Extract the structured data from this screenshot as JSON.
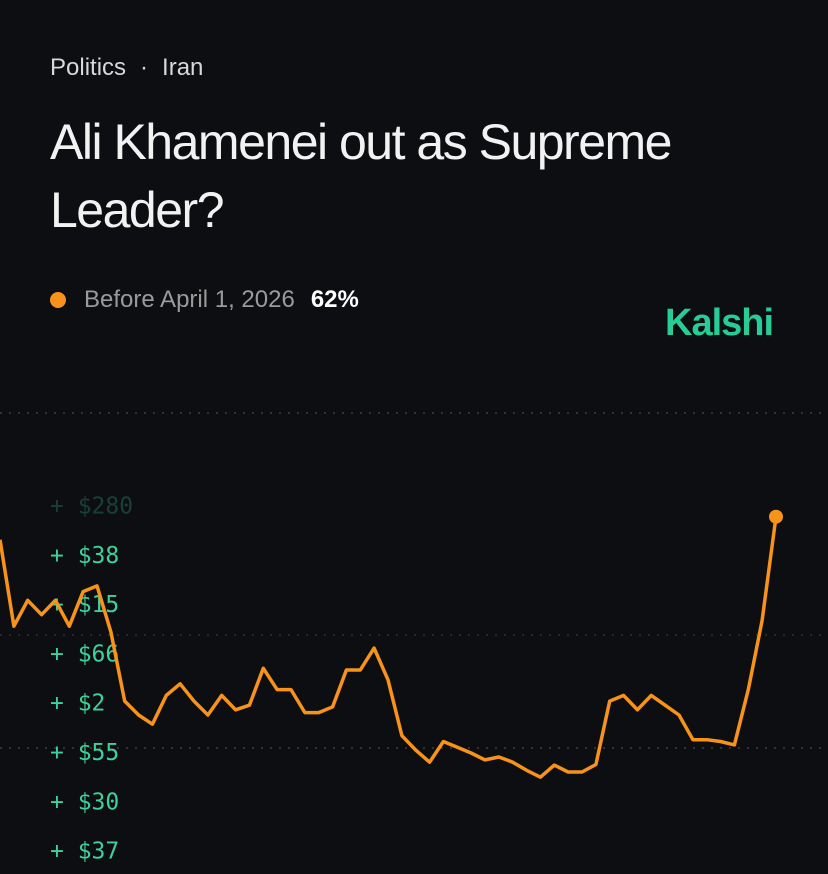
{
  "header": {
    "category": "Politics",
    "subcategory": "Iran",
    "title": "Ali Khamenei out as Supreme Leader?",
    "brand": "Kalshi"
  },
  "trades": [
    "+ $280",
    "+ $38",
    "+ $15",
    "+ $66",
    "+ $2",
    "+ $55",
    "+ $30",
    "+ $37"
  ],
  "chart_data": {
    "type": "line",
    "ylim": [
      0,
      80
    ],
    "series": [
      {
        "name": "Before April 1, 2026",
        "color": "#f7931a",
        "values": [
          58,
          43,
          47.5,
          45,
          47.5,
          43,
          49,
          50,
          42,
          30,
          27.6,
          26,
          31,
          33,
          30,
          27.6,
          31,
          28.5,
          29.3,
          35.7,
          32,
          32,
          28,
          28,
          29,
          35.4,
          35.4,
          39.2,
          33.7,
          24,
          21.5,
          19.4,
          23,
          22,
          21,
          19.8,
          20.3,
          19.4,
          18,
          16.8,
          18.9,
          17.7,
          17.7,
          19,
          30,
          31,
          28.5,
          31,
          29.3,
          27.6,
          23.3,
          23.3,
          23,
          22.4,
          32,
          44,
          62
        ],
        "value_labels": [
          null,
          null,
          null,
          null,
          null,
          null,
          null,
          null,
          null,
          null,
          null,
          null,
          null,
          null,
          null,
          null,
          null,
          null,
          null,
          null,
          null,
          null,
          null,
          null,
          null,
          null,
          null,
          null,
          null,
          null,
          null,
          null,
          null,
          null,
          null,
          null,
          null,
          null,
          null,
          null,
          null,
          null,
          null,
          null,
          null,
          null,
          null,
          null,
          null,
          null,
          null,
          null,
          null,
          null,
          null,
          null,
          "62%"
        ]
      }
    ]
  }
}
